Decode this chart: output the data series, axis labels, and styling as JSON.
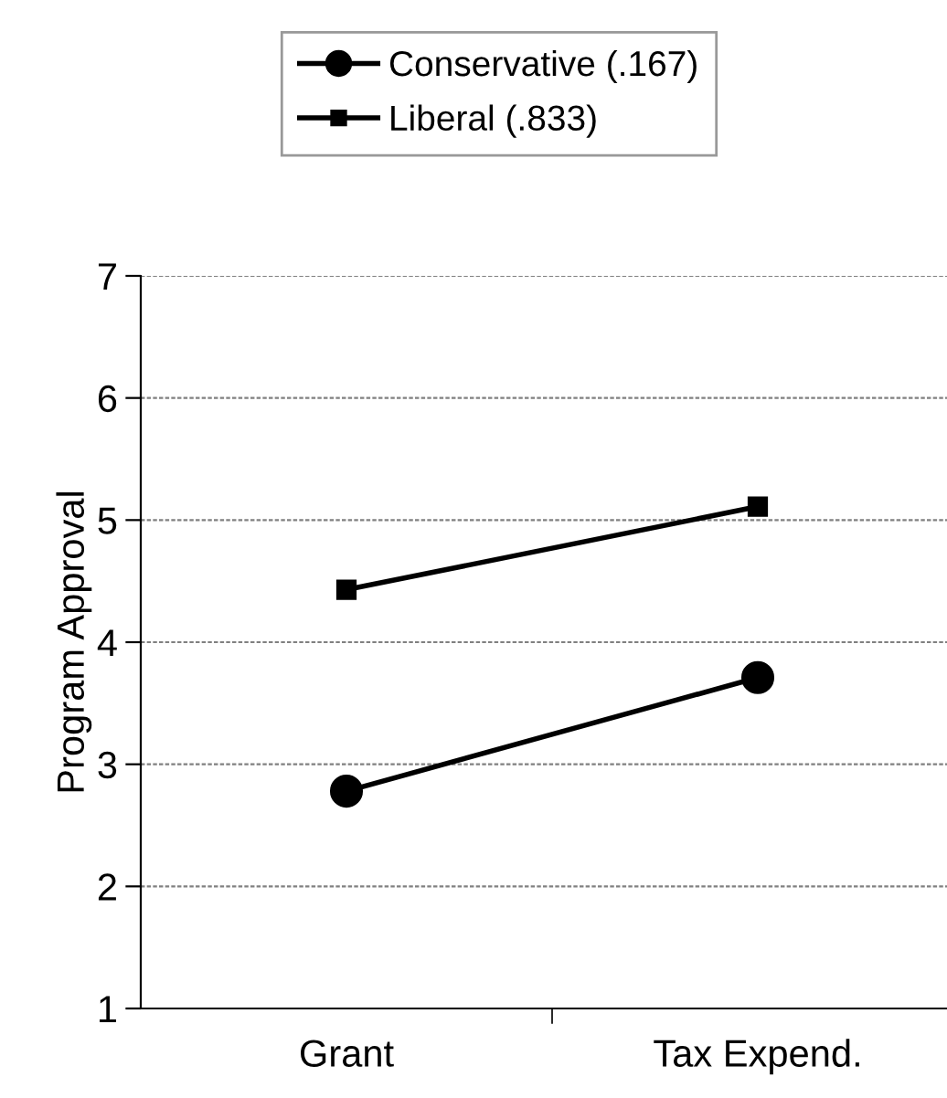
{
  "chart_data": {
    "type": "line",
    "ylabel": "Program Approval",
    "categories": [
      "Grant",
      "Tax Expend."
    ],
    "series": [
      {
        "name": "Conservative (.167)",
        "color": "#000000",
        "marker": "circle",
        "values": [
          2.78,
          3.71
        ]
      },
      {
        "name": "Liberal (.833)",
        "color": "#000000",
        "marker": "square",
        "values": [
          4.43,
          5.11
        ]
      }
    ],
    "ylim": [
      1,
      7
    ],
    "yticks": [
      1,
      2,
      3,
      4,
      5,
      6,
      7
    ],
    "grid": "y",
    "legend": "top",
    "line_style": "solid"
  }
}
